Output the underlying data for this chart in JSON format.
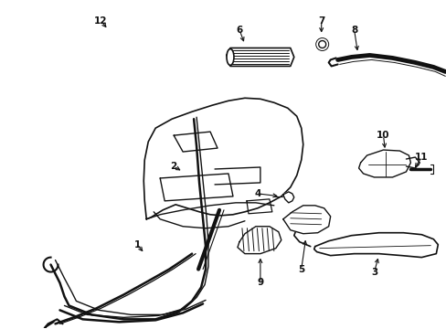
{
  "background_color": "#ffffff",
  "line_color": "#111111",
  "fig_width": 4.89,
  "fig_height": 3.6,
  "dpi": 100
}
